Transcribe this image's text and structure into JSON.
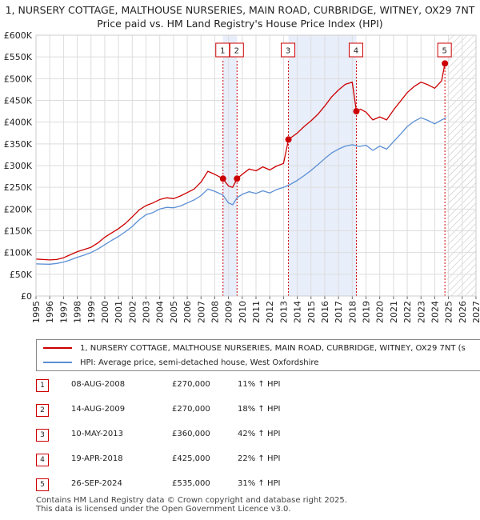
{
  "chart_data": {
    "type": "line",
    "title_line1": "1, NURSERY COTTAGE, MALTHOUSE NURSERIES, MAIN ROAD, CURBRIDGE, WITNEY, OX29 7NT",
    "title_line2": "Price paid vs. HM Land Registry's House Price Index (HPI)",
    "xlim": [
      1995,
      2027
    ],
    "ylim": [
      0,
      600000
    ],
    "x_ticks": [
      "1995",
      "1996",
      "1997",
      "1998",
      "1999",
      "2000",
      "2001",
      "2002",
      "2003",
      "2004",
      "2005",
      "2006",
      "2007",
      "2008",
      "2009",
      "2010",
      "2011",
      "2012",
      "2013",
      "2014",
      "2015",
      "2016",
      "2017",
      "2018",
      "2019",
      "2020",
      "2021",
      "2022",
      "2023",
      "2024",
      "2025",
      "2026",
      "2027"
    ],
    "y_ticks": [
      {
        "value": 0,
        "label": "£0"
      },
      {
        "value": 50000,
        "label": "£50K"
      },
      {
        "value": 100000,
        "label": "£100K"
      },
      {
        "value": 150000,
        "label": "£150K"
      },
      {
        "value": 200000,
        "label": "£200K"
      },
      {
        "value": 250000,
        "label": "£250K"
      },
      {
        "value": 300000,
        "label": "£300K"
      },
      {
        "value": 350000,
        "label": "£350K"
      },
      {
        "value": 400000,
        "label": "£400K"
      },
      {
        "value": 450000,
        "label": "£450K"
      },
      {
        "value": 500000,
        "label": "£500K"
      },
      {
        "value": 550000,
        "label": "£550K"
      },
      {
        "value": 600000,
        "label": "£600K"
      }
    ],
    "grid": true,
    "hatch_from": 2024.9,
    "shaded_periods": [
      [
        2008.6,
        2009.62
      ],
      [
        2013.36,
        2018.3
      ]
    ],
    "series": [
      {
        "name": "1, NURSERY COTTAGE, MALTHOUSE NURSERIES, MAIN ROAD, CURBRIDGE, WITNEY, OX29 7NT (s",
        "color": "#cc0000",
        "points": [
          [
            1995.0,
            85000
          ],
          [
            1995.5,
            84000
          ],
          [
            1996.0,
            83000
          ],
          [
            1996.5,
            84000
          ],
          [
            1997.0,
            88000
          ],
          [
            1997.5,
            95000
          ],
          [
            1998.0,
            102000
          ],
          [
            1998.5,
            107000
          ],
          [
            1999.0,
            112000
          ],
          [
            1999.5,
            122000
          ],
          [
            2000.0,
            135000
          ],
          [
            2000.5,
            145000
          ],
          [
            2001.0,
            155000
          ],
          [
            2001.5,
            167000
          ],
          [
            2002.0,
            182000
          ],
          [
            2002.5,
            198000
          ],
          [
            2003.0,
            208000
          ],
          [
            2003.5,
            214000
          ],
          [
            2004.0,
            222000
          ],
          [
            2004.5,
            226000
          ],
          [
            2005.0,
            224000
          ],
          [
            2005.5,
            230000
          ],
          [
            2006.0,
            238000
          ],
          [
            2006.5,
            246000
          ],
          [
            2007.0,
            262000
          ],
          [
            2007.5,
            287000
          ],
          [
            2008.0,
            280000
          ],
          [
            2008.6,
            270000
          ],
          [
            2009.0,
            253000
          ],
          [
            2009.3,
            250000
          ],
          [
            2009.62,
            270000
          ],
          [
            2010.0,
            280000
          ],
          [
            2010.5,
            292000
          ],
          [
            2011.0,
            288000
          ],
          [
            2011.5,
            297000
          ],
          [
            2012.0,
            290000
          ],
          [
            2012.5,
            299000
          ],
          [
            2013.0,
            305000
          ],
          [
            2013.36,
            360000
          ],
          [
            2013.7,
            368000
          ],
          [
            2014.0,
            375000
          ],
          [
            2014.5,
            390000
          ],
          [
            2015.0,
            403000
          ],
          [
            2015.5,
            418000
          ],
          [
            2016.0,
            437000
          ],
          [
            2016.5,
            458000
          ],
          [
            2017.0,
            474000
          ],
          [
            2017.5,
            487000
          ],
          [
            2018.0,
            492000
          ],
          [
            2018.3,
            425000
          ],
          [
            2018.6,
            430000
          ],
          [
            2019.0,
            423000
          ],
          [
            2019.5,
            405000
          ],
          [
            2020.0,
            412000
          ],
          [
            2020.5,
            405000
          ],
          [
            2021.0,
            428000
          ],
          [
            2021.5,
            448000
          ],
          [
            2022.0,
            468000
          ],
          [
            2022.5,
            482000
          ],
          [
            2023.0,
            492000
          ],
          [
            2023.5,
            486000
          ],
          [
            2024.0,
            478000
          ],
          [
            2024.5,
            495000
          ],
          [
            2024.74,
            535000
          ],
          [
            2024.85,
            540000
          ]
        ]
      },
      {
        "name": "HPI: Average price, semi-detached house, West Oxfordshire",
        "color": "#5b8fd4",
        "points": [
          [
            1995.0,
            74000
          ],
          [
            1995.5,
            73500
          ],
          [
            1996.0,
            73000
          ],
          [
            1996.5,
            75000
          ],
          [
            1997.0,
            78000
          ],
          [
            1997.5,
            83000
          ],
          [
            1998.0,
            89000
          ],
          [
            1998.5,
            94000
          ],
          [
            1999.0,
            100000
          ],
          [
            1999.5,
            108000
          ],
          [
            2000.0,
            118000
          ],
          [
            2000.5,
            128000
          ],
          [
            2001.0,
            137000
          ],
          [
            2001.5,
            148000
          ],
          [
            2002.0,
            160000
          ],
          [
            2002.5,
            175000
          ],
          [
            2003.0,
            187000
          ],
          [
            2003.5,
            192000
          ],
          [
            2004.0,
            200000
          ],
          [
            2004.5,
            204000
          ],
          [
            2005.0,
            203000
          ],
          [
            2005.5,
            207000
          ],
          [
            2006.0,
            214000
          ],
          [
            2006.5,
            221000
          ],
          [
            2007.0,
            231000
          ],
          [
            2007.5,
            246000
          ],
          [
            2008.0,
            241000
          ],
          [
            2008.6,
            232000
          ],
          [
            2009.0,
            214000
          ],
          [
            2009.3,
            210000
          ],
          [
            2009.62,
            226000
          ],
          [
            2010.0,
            234000
          ],
          [
            2010.5,
            240000
          ],
          [
            2011.0,
            236000
          ],
          [
            2011.5,
            242000
          ],
          [
            2012.0,
            237000
          ],
          [
            2012.5,
            245000
          ],
          [
            2013.0,
            250000
          ],
          [
            2013.5,
            257000
          ],
          [
            2014.0,
            266000
          ],
          [
            2014.5,
            277000
          ],
          [
            2015.0,
            289000
          ],
          [
            2015.5,
            302000
          ],
          [
            2016.0,
            316000
          ],
          [
            2016.5,
            329000
          ],
          [
            2017.0,
            338000
          ],
          [
            2017.5,
            345000
          ],
          [
            2018.0,
            348000
          ],
          [
            2018.5,
            344000
          ],
          [
            2019.0,
            347000
          ],
          [
            2019.5,
            335000
          ],
          [
            2020.0,
            345000
          ],
          [
            2020.5,
            338000
          ],
          [
            2021.0,
            355000
          ],
          [
            2021.5,
            372000
          ],
          [
            2022.0,
            390000
          ],
          [
            2022.5,
            402000
          ],
          [
            2023.0,
            410000
          ],
          [
            2023.5,
            404000
          ],
          [
            2024.0,
            396000
          ],
          [
            2024.5,
            405000
          ],
          [
            2024.85,
            410000
          ]
        ]
      }
    ],
    "markers": [
      {
        "label": "1",
        "x": 2008.6,
        "y": 270000
      },
      {
        "label": "2",
        "x": 2009.62,
        "y": 270000
      },
      {
        "label": "3",
        "x": 2013.36,
        "y": 360000
      },
      {
        "label": "4",
        "x": 2018.3,
        "y": 425000
      },
      {
        "label": "5",
        "x": 2024.74,
        "y": 535000
      }
    ]
  },
  "legend": {
    "items": [
      {
        "label": "1, NURSERY COTTAGE, MALTHOUSE NURSERIES, MAIN ROAD, CURBRIDGE, WITNEY, OX29 7NT (s",
        "color": "#cc0000"
      },
      {
        "label": "HPI: Average price, semi-detached house, West Oxfordshire",
        "color": "#5b8fd4"
      }
    ]
  },
  "sales": [
    {
      "num": "1",
      "date": "08-AUG-2008",
      "price": "£270,000",
      "hpi": "11% ↑ HPI"
    },
    {
      "num": "2",
      "date": "14-AUG-2009",
      "price": "£270,000",
      "hpi": "18% ↑ HPI"
    },
    {
      "num": "3",
      "date": "10-MAY-2013",
      "price": "£360,000",
      "hpi": "42% ↑ HPI"
    },
    {
      "num": "4",
      "date": "19-APR-2018",
      "price": "£425,000",
      "hpi": "22% ↑ HPI"
    },
    {
      "num": "5",
      "date": "26-SEP-2024",
      "price": "£535,000",
      "hpi": "31% ↑ HPI"
    }
  ],
  "footer": {
    "line1": "Contains HM Land Registry data © Crown copyright and database right 2025.",
    "line2": "This data is licensed under the Open Government Licence v3.0."
  }
}
